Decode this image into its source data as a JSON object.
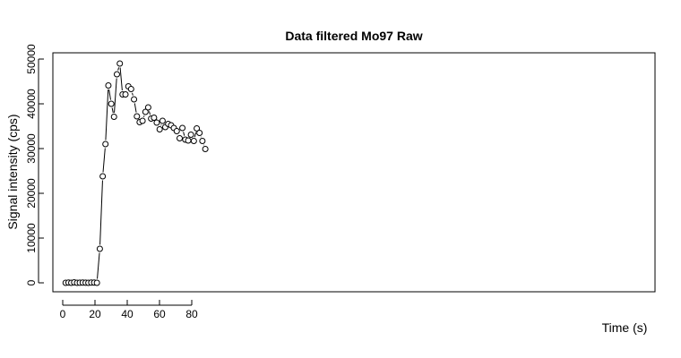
{
  "chart_data": {
    "type": "line",
    "title": "Data filtered Mo97 Raw",
    "xlabel": "Time (s)",
    "ylabel": "Signal intensity (cps)",
    "xlim": [
      0,
      91
    ],
    "ylim": [
      0,
      50000
    ],
    "x_ticks": [
      0,
      20,
      40,
      60,
      80
    ],
    "y_ticks": [
      0,
      10000,
      20000,
      30000,
      40000,
      50000
    ],
    "x_tick_labels": [
      "0",
      "20",
      "40",
      "60",
      "80"
    ],
    "y_tick_labels": [
      "0",
      "10000",
      "20000",
      "30000",
      "40000",
      "50000"
    ],
    "grid": false,
    "series": [
      {
        "x": [
          1.8,
          3.6,
          5.3,
          7.1,
          8.9,
          10.6,
          12.4,
          14.2,
          15.9,
          17.7,
          19.5,
          21.2,
          23.0,
          24.8,
          26.5,
          28.3,
          30.1,
          31.8,
          33.6,
          35.4,
          37.1,
          38.9,
          40.7,
          42.4,
          44.2,
          46.0,
          47.7,
          49.5,
          51.3,
          53.0,
          54.8,
          56.6,
          58.3,
          60.1,
          61.9,
          63.6,
          65.4,
          67.2,
          68.9,
          70.7,
          72.5,
          74.2,
          76.0,
          77.8,
          79.5,
          81.3,
          83.1,
          84.8,
          86.6,
          88.4
        ],
        "y": [
          0,
          50,
          0,
          100,
          0,
          30,
          50,
          20,
          0,
          50,
          50,
          0,
          7600,
          23800,
          31000,
          44100,
          40000,
          37100,
          46600,
          49000,
          42100,
          42100,
          43900,
          43300,
          41000,
          37200,
          35900,
          36200,
          38200,
          39200,
          36700,
          36900,
          35800,
          34300,
          36200,
          34800,
          35500,
          35200,
          34600,
          33900,
          32300,
          34600,
          32000,
          31800,
          33100,
          31700,
          34500,
          33500,
          31700,
          29900
        ],
        "lines": [
          [
            0,
            1
          ],
          [
            11,
            12
          ],
          [
            12,
            13
          ],
          [
            13,
            14
          ],
          [
            14,
            15
          ],
          [
            15,
            16
          ],
          [
            16,
            17
          ],
          [
            17,
            18
          ],
          [
            18,
            19
          ],
          [
            19,
            20
          ],
          [
            22,
            23
          ],
          [
            23,
            24
          ],
          [
            24,
            25
          ],
          [
            25,
            26
          ],
          [
            27,
            28
          ],
          [
            29,
            30
          ],
          [
            32,
            33
          ],
          [
            33,
            34
          ],
          [
            35,
            36
          ],
          [
            38,
            39
          ],
          [
            39,
            40
          ],
          [
            41,
            42
          ],
          [
            43,
            44
          ],
          [
            44,
            45
          ],
          [
            45,
            46
          ],
          [
            47,
            48
          ],
          [
            48,
            49
          ]
        ]
      }
    ]
  }
}
